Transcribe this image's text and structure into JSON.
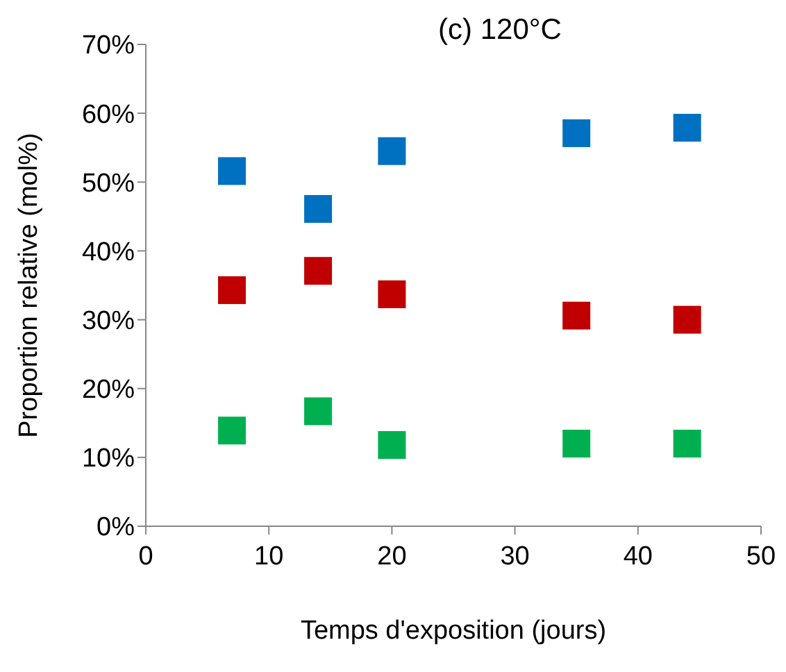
{
  "chart_data": {
    "type": "scatter",
    "title": "(c) 120°C",
    "xlabel": "Temps d'exposition (jours)",
    "ylabel": "Proportion relative (mol%)",
    "x": [
      7,
      14,
      20,
      35,
      44
    ],
    "series": [
      {
        "color": "#0070c0",
        "values": [
          51.6,
          46.1,
          54.5,
          57.1,
          57.9
        ]
      },
      {
        "color": "#c00000",
        "values": [
          34.3,
          37.1,
          33.7,
          30.6,
          30.0
        ]
      },
      {
        "color": "#00b050",
        "values": [
          13.9,
          16.7,
          11.8,
          12.0,
          12.0
        ]
      }
    ],
    "xlim": [
      0,
      50
    ],
    "xticks": [
      0,
      10,
      20,
      30,
      40,
      50
    ],
    "ylim": [
      0,
      70
    ],
    "yticks": [
      {
        "value": 0,
        "label": "0%"
      },
      {
        "value": 10,
        "label": "10%"
      },
      {
        "value": 20,
        "label": "20%"
      },
      {
        "value": 30,
        "label": "30%"
      },
      {
        "value": 40,
        "label": "40%"
      },
      {
        "value": 50,
        "label": "50%"
      },
      {
        "value": 60,
        "label": "60%"
      },
      {
        "value": 70,
        "label": "70%"
      }
    ],
    "grid": false,
    "legend": false,
    "marker": "square"
  }
}
